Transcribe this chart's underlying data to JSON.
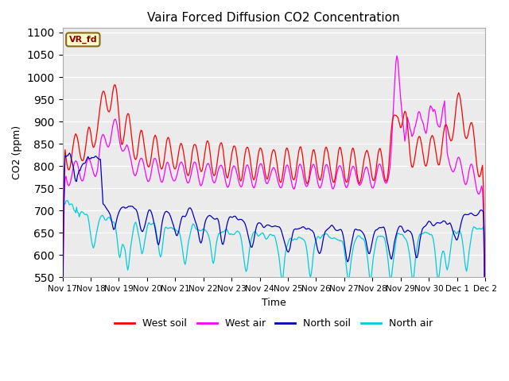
{
  "title": "Vaira Forced Diffusion CO2 Concentration",
  "xlabel": "Time",
  "ylabel": "CO2 (ppm)",
  "ylim": [
    550,
    1110
  ],
  "yticks": [
    550,
    600,
    650,
    700,
    750,
    800,
    850,
    900,
    950,
    1000,
    1050,
    1100
  ],
  "legend_label": "VR_fd",
  "series_labels": [
    "West soil",
    "West air",
    "North soil",
    "North air"
  ],
  "series_colors": [
    "#ff0000",
    "#ff00ff",
    "#0000bb",
    "#00ccdd"
  ],
  "background_color": "#ebebeb",
  "x_tick_labels": [
    "Nov 17",
    "Nov 18",
    "Nov 19",
    "Nov 20",
    "Nov 21",
    "Nov 22",
    "Nov 23",
    "Nov 24",
    "Nov 25",
    "Nov 26",
    "Nov 27",
    "Nov 28",
    "Nov 29",
    "Nov 30",
    "Dec 1",
    "Dec 2"
  ],
  "n_points": 480,
  "seed": 7
}
